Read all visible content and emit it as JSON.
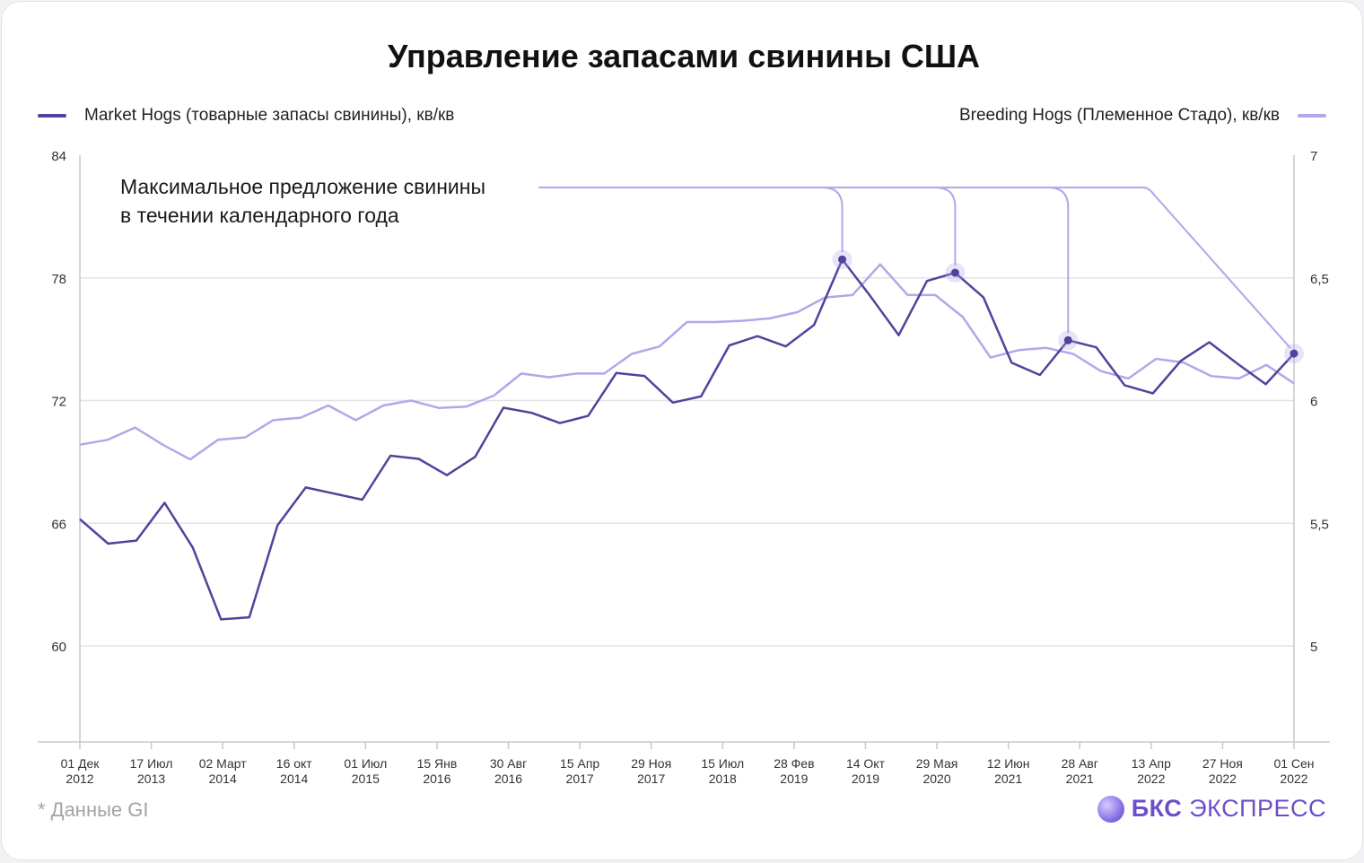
{
  "title": "Управление запасами свинины США",
  "source_note": "* Данные GI",
  "brand": {
    "strong": "БКС",
    "light": "ЭКСПРЕСС",
    "icon": "bks-logo-icon"
  },
  "colors": {
    "market": "#52429c",
    "breeding": "#b3a6ea",
    "grid": "#e3e3e6",
    "axis": "#c8c8cc"
  },
  "chart_data": {
    "type": "line",
    "title": "Управление запасами свинины США",
    "legend_placement": "top",
    "grid": true,
    "y_left": {
      "ylim": [
        60,
        84
      ],
      "ticks": [
        "84",
        "78",
        "72",
        "66",
        "60"
      ]
    },
    "y_right": {
      "ylim": [
        5,
        7
      ],
      "ticks": [
        "7",
        "6,5",
        "6",
        "5,5",
        "5"
      ]
    },
    "x_ticks": [
      "01 Дек 2012",
      "17 Июл 2013",
      "02 Март 2014",
      "16 окт 2014",
      "01 Июл 2015",
      "15 Янв 2016",
      "30 Авг 2016",
      "15 Апр 2017",
      "29 Ноя 2017",
      "15 Июл 2018",
      "28 Фев 2019",
      "14 Окт 2019",
      "29 Мая 2020",
      "12 Июн 2021",
      "28 Авг 2021",
      "13 Апр 2022",
      "27 Ноя 2022",
      "01 Сен 2022"
    ],
    "annotation": "Максимальное предложение свинины в течении календарного года",
    "series": [
      {
        "name": "Market Hogs (товарные запасы свинины), кв/кв",
        "axis": "left",
        "values": [
          66.2,
          65.0,
          65.15,
          67.0,
          64.8,
          61.3,
          61.4,
          65.9,
          67.75,
          67.45,
          67.15,
          69.3,
          69.15,
          68.35,
          69.25,
          71.65,
          71.4,
          70.9,
          71.25,
          73.35,
          73.2,
          71.9,
          72.2,
          74.7,
          75.15,
          74.65,
          75.7,
          78.9,
          77.1,
          75.2,
          77.85,
          78.25,
          77.05,
          73.85,
          73.25,
          74.95,
          74.6,
          72.75,
          72.35,
          73.95,
          74.85,
          73.8,
          72.8,
          74.3
        ],
        "highlight_indices": [
          27,
          31,
          35,
          43
        ]
      },
      {
        "name": "Breeding Hogs (Племенное Стадо), кв/кв",
        "axis": "right",
        "values": [
          5.82,
          5.84,
          5.89,
          5.82,
          5.76,
          5.84,
          5.85,
          5.92,
          5.93,
          5.98,
          5.92,
          5.98,
          6.0,
          5.97,
          5.975,
          6.02,
          6.11,
          6.095,
          6.11,
          6.11,
          6.19,
          6.22,
          6.32,
          6.32,
          6.325,
          6.335,
          6.36,
          6.42,
          6.43,
          6.555,
          6.43,
          6.43,
          6.34,
          6.175,
          6.205,
          6.215,
          6.19,
          6.12,
          6.09,
          6.17,
          6.155,
          6.1,
          6.09,
          6.145,
          6.07
        ]
      }
    ]
  }
}
